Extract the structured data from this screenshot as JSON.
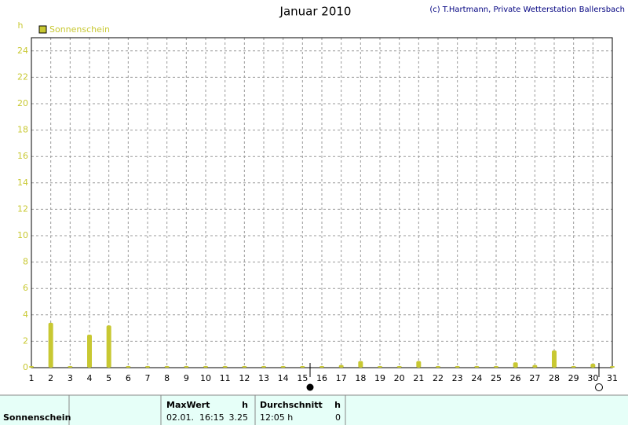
{
  "chart_data": {
    "type": "bar",
    "title": "Januar 2010",
    "credit": "(c) T.Hartmann, Private Wetterstation Ballersbach",
    "y_label": "h",
    "x": [
      1,
      2,
      3,
      4,
      5,
      6,
      7,
      8,
      9,
      10,
      11,
      12,
      13,
      14,
      15,
      16,
      17,
      18,
      19,
      20,
      21,
      22,
      23,
      24,
      25,
      26,
      27,
      28,
      29,
      30,
      31
    ],
    "series": [
      {
        "name": "Sonnenschein",
        "color": "#c8c832",
        "values": [
          0,
          3.4,
          0,
          2.5,
          3.2,
          0,
          0,
          0,
          0,
          0,
          0,
          0,
          0,
          0,
          0,
          0,
          0.2,
          0.5,
          0,
          0,
          0.5,
          0,
          0,
          0,
          0,
          0.4,
          0.2,
          1.3,
          0,
          0.3,
          0.1
        ]
      }
    ],
    "xlim": [
      1,
      31
    ],
    "xticks": [
      1,
      2,
      3,
      4,
      5,
      6,
      7,
      8,
      9,
      10,
      11,
      12,
      13,
      14,
      15,
      16,
      17,
      18,
      19,
      20,
      21,
      22,
      23,
      24,
      25,
      26,
      27,
      28,
      29,
      30,
      31
    ],
    "ylim": [
      0,
      25
    ],
    "yticks": [
      0,
      2,
      4,
      6,
      8,
      10,
      12,
      14,
      16,
      18,
      20,
      22,
      24
    ],
    "grid": true
  },
  "table": {
    "row_label": "Sonnenschein",
    "max": {
      "header": "MaxWert",
      "unit": "h",
      "date": "02.01.  16:15",
      "value": "3.25"
    },
    "avg": {
      "header": "Durchschnitt",
      "unit": "h",
      "time": "12:05 h",
      "value": "0"
    }
  }
}
